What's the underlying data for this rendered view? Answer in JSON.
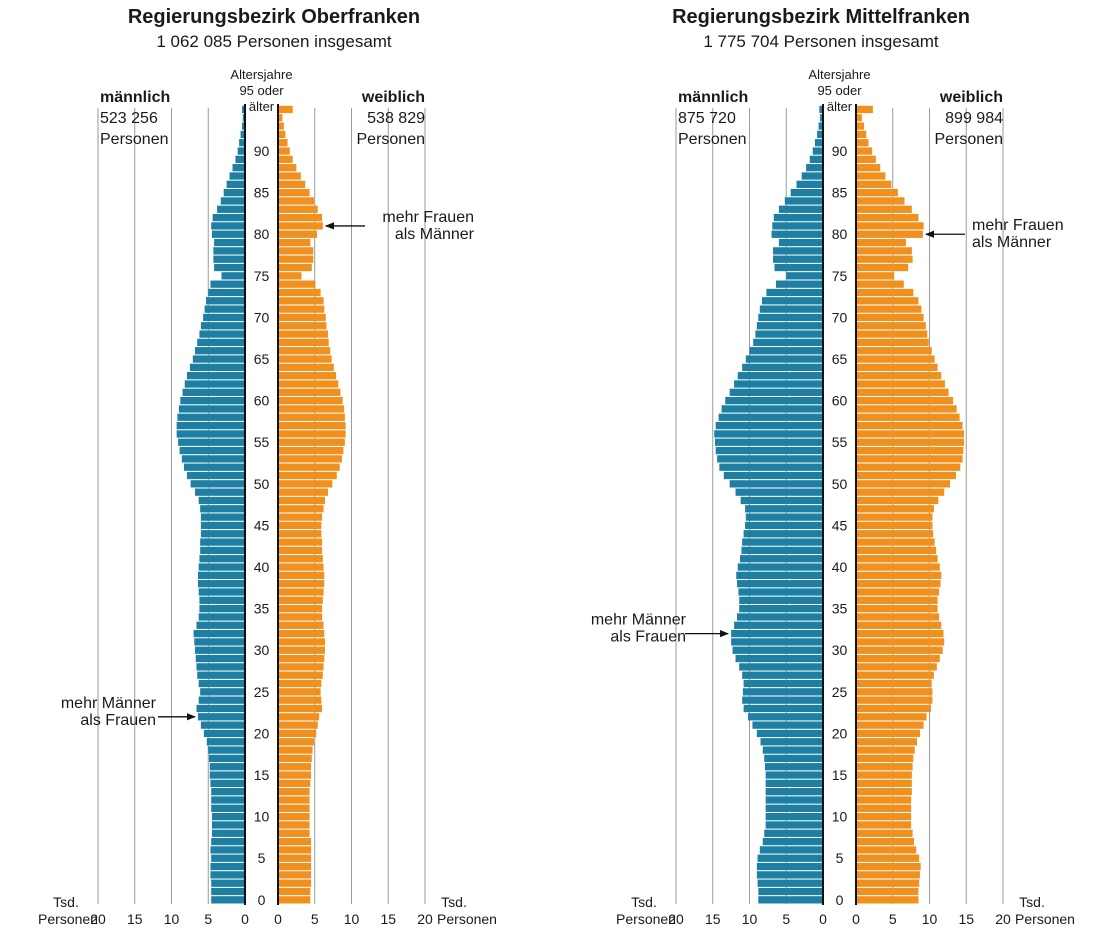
{
  "colors": {
    "male": "#1f7fa3",
    "female": "#f0901e",
    "grid": "#9a9a9a",
    "axis": "#111111"
  },
  "labels": {
    "age_header": [
      "Altersjahre",
      "95 oder",
      "älter"
    ],
    "male": "männlich",
    "female": "weiblich",
    "persons": "Personen",
    "unit_left": [
      "Tsd.",
      "Personen"
    ],
    "unit_right": [
      "Tsd.",
      "Personen"
    ],
    "more_women": [
      "mehr Frauen",
      "als Männer"
    ],
    "more_men": [
      "mehr Männer",
      "als Frauen"
    ]
  },
  "panels": [
    {
      "title": "Regierungsbezirk Oberfranken",
      "subtitle": "1 062 085 Personen insgesamt",
      "male_total": "523 256",
      "female_total": "538 829"
    },
    {
      "title": "Regierungsbezirk Mittelfranken",
      "subtitle": "1 775 704 Personen insgesamt",
      "male_total": "875 720",
      "female_total": "899 984"
    }
  ],
  "chart_data": [
    {
      "type": "bar",
      "orientation": "horizontal-population-pyramid",
      "title": "Regierungsbezirk Oberfranken",
      "subtitle": "1 062 085 Personen insgesamt",
      "xlabel": "Tsd. Personen",
      "ylabel": "Altersjahre",
      "xlim": [
        0,
        20
      ],
      "xticks": [
        20,
        15,
        10,
        5,
        0
      ],
      "yticks": [
        0,
        5,
        10,
        15,
        20,
        25,
        30,
        35,
        40,
        45,
        50,
        55,
        60,
        65,
        70,
        75,
        80,
        85,
        90
      ],
      "top_category": "95 oder älter",
      "annotations": [
        {
          "text": "mehr Frauen als Männer",
          "age": 81,
          "side": "female"
        },
        {
          "text": "mehr Männer als Frauen",
          "age": 22,
          "side": "male"
        }
      ],
      "series": [
        {
          "name": "männlich",
          "total": "523 256",
          "values": [
            4.6,
            4.6,
            4.6,
            4.7,
            4.7,
            4.6,
            4.7,
            4.6,
            4.5,
            4.5,
            4.5,
            4.6,
            4.6,
            4.6,
            4.7,
            4.8,
            4.8,
            4.9,
            5.0,
            5.2,
            5.6,
            6.0,
            6.4,
            6.6,
            6.3,
            6.1,
            6.3,
            6.5,
            6.6,
            6.7,
            6.8,
            6.9,
            7.0,
            6.6,
            6.3,
            6.2,
            6.2,
            6.3,
            6.4,
            6.4,
            6.3,
            6.2,
            6.1,
            6.1,
            6.0,
            6.0,
            6.0,
            6.1,
            6.3,
            6.8,
            7.4,
            7.9,
            8.3,
            8.6,
            8.9,
            9.1,
            9.3,
            9.3,
            9.2,
            9.0,
            8.8,
            8.5,
            8.2,
            7.9,
            7.5,
            7.1,
            6.8,
            6.5,
            6.2,
            6.0,
            5.7,
            5.5,
            5.3,
            5.0,
            4.7,
            3.2,
            4.2,
            4.3,
            4.3,
            4.2,
            4.5,
            4.6,
            4.4,
            3.8,
            3.3,
            2.9,
            2.5,
            2.1,
            1.7,
            1.3,
            1.0,
            0.8,
            0.6,
            0.4,
            0.3,
            0.4
          ]
        },
        {
          "name": "weiblich",
          "total": "538 829",
          "values": [
            4.4,
            4.4,
            4.5,
            4.5,
            4.5,
            4.5,
            4.5,
            4.5,
            4.3,
            4.3,
            4.3,
            4.3,
            4.3,
            4.3,
            4.4,
            4.5,
            4.5,
            4.6,
            4.7,
            4.9,
            5.2,
            5.4,
            5.6,
            6.0,
            5.9,
            5.8,
            5.9,
            6.1,
            6.2,
            6.3,
            6.4,
            6.4,
            6.3,
            6.2,
            6.0,
            6.0,
            6.1,
            6.2,
            6.3,
            6.3,
            6.2,
            6.1,
            6.0,
            6.0,
            5.9,
            5.9,
            6.0,
            6.2,
            6.4,
            6.8,
            7.4,
            8.0,
            8.4,
            8.7,
            8.9,
            9.1,
            9.2,
            9.2,
            9.1,
            9.0,
            8.8,
            8.5,
            8.2,
            7.9,
            7.6,
            7.3,
            7.1,
            6.9,
            6.8,
            6.6,
            6.5,
            6.3,
            6.2,
            5.8,
            5.1,
            3.2,
            4.6,
            4.8,
            4.8,
            4.4,
            5.3,
            6.1,
            6.0,
            5.4,
            4.9,
            4.3,
            3.7,
            3.1,
            2.5,
            2.0,
            1.6,
            1.3,
            1.0,
            0.8,
            0.6,
            2.0
          ]
        }
      ]
    },
    {
      "type": "bar",
      "orientation": "horizontal-population-pyramid",
      "title": "Regierungsbezirk Mittelfranken",
      "subtitle": "1 775 704 Personen insgesamt",
      "xlabel": "Tsd. Personen",
      "ylabel": "Altersjahre",
      "xlim": [
        0,
        20
      ],
      "xticks": [
        20,
        15,
        10,
        5,
        0
      ],
      "yticks": [
        0,
        5,
        10,
        15,
        20,
        25,
        30,
        35,
        40,
        45,
        50,
        55,
        60,
        65,
        70,
        75,
        80,
        85,
        90
      ],
      "top_category": "95 oder älter",
      "annotations": [
        {
          "text": "mehr Frauen als Männer",
          "age": 80,
          "side": "female"
        },
        {
          "text": "mehr Männer als Frauen",
          "age": 32,
          "side": "male"
        }
      ],
      "series": [
        {
          "name": "männlich",
          "total": "875 720",
          "values": [
            8.8,
            8.8,
            8.9,
            9.0,
            9.0,
            8.9,
            8.6,
            8.2,
            8.0,
            7.8,
            7.8,
            7.8,
            7.8,
            7.8,
            7.8,
            7.8,
            7.9,
            8.0,
            8.2,
            8.5,
            9.0,
            9.6,
            10.2,
            10.8,
            11.0,
            10.9,
            10.8,
            11.0,
            11.4,
            11.9,
            12.3,
            12.5,
            12.5,
            12.1,
            11.7,
            11.4,
            11.4,
            11.5,
            11.7,
            11.8,
            11.6,
            11.3,
            11.1,
            11.0,
            10.8,
            10.6,
            10.5,
            10.6,
            11.2,
            11.9,
            12.7,
            13.5,
            14.1,
            14.4,
            14.6,
            14.7,
            14.8,
            14.6,
            14.2,
            13.8,
            13.3,
            12.7,
            12.1,
            11.6,
            11.0,
            10.5,
            10.0,
            9.5,
            9.2,
            9.0,
            8.8,
            8.6,
            8.3,
            7.7,
            6.4,
            5.0,
            6.6,
            6.8,
            6.8,
            6.0,
            7.0,
            6.9,
            6.7,
            6.0,
            5.2,
            4.4,
            3.6,
            2.9,
            2.3,
            1.8,
            1.4,
            1.1,
            0.8,
            0.6,
            0.4,
            0.5
          ]
        },
        {
          "name": "weiblich",
          "total": "899 984",
          "values": [
            8.5,
            8.5,
            8.6,
            8.7,
            8.8,
            8.6,
            8.2,
            7.9,
            7.7,
            7.5,
            7.5,
            7.5,
            7.5,
            7.6,
            7.6,
            7.6,
            7.7,
            7.8,
            8.0,
            8.3,
            8.7,
            9.2,
            9.6,
            10.2,
            10.4,
            10.4,
            10.3,
            10.6,
            11.0,
            11.4,
            11.8,
            12.0,
            11.9,
            11.6,
            11.3,
            11.1,
            11.1,
            11.3,
            11.5,
            11.6,
            11.4,
            11.1,
            10.9,
            10.7,
            10.5,
            10.4,
            10.4,
            10.6,
            11.2,
            12.0,
            12.8,
            13.6,
            14.2,
            14.5,
            14.6,
            14.7,
            14.7,
            14.5,
            14.1,
            13.7,
            13.2,
            12.6,
            12.1,
            11.6,
            11.1,
            10.7,
            10.3,
            9.9,
            9.7,
            9.5,
            9.2,
            8.9,
            8.5,
            7.8,
            6.5,
            5.2,
            7.1,
            7.7,
            7.6,
            6.8,
            9.1,
            9.2,
            8.5,
            7.6,
            6.6,
            5.7,
            4.8,
            4.0,
            3.3,
            2.7,
            2.2,
            1.7,
            1.4,
            1.1,
            0.8,
            2.3
          ]
        }
      ]
    }
  ]
}
